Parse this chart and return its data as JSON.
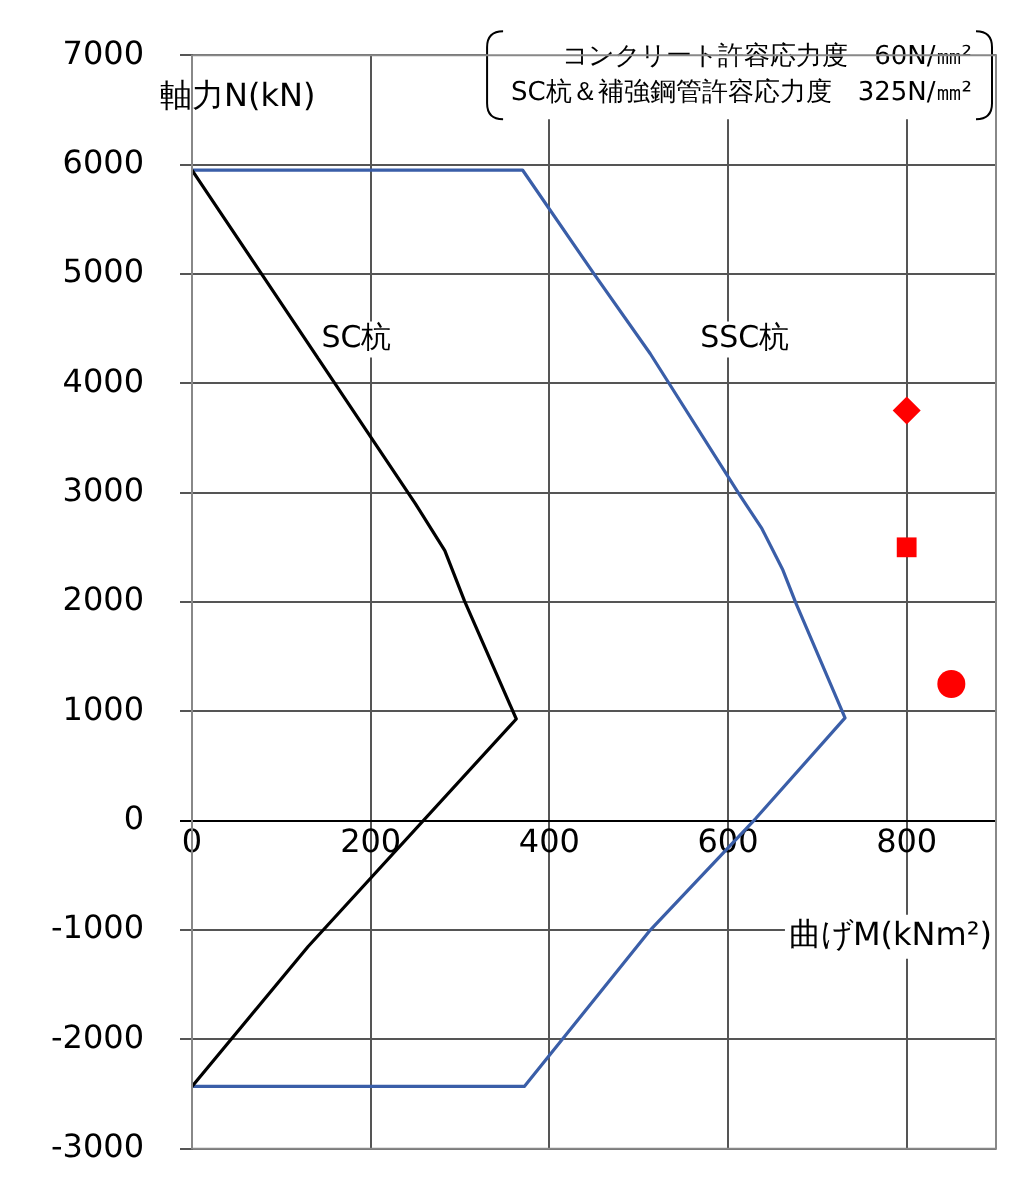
{
  "chart_data": {
    "type": "line",
    "xlabel": "曲げM(kNm²)",
    "ylabel": "軸力N(kN)",
    "annotations": [
      "コンクリート許容応力度　60N/㎜²",
      "SC杭＆補強鋼管許容応力度　325N/㎜²"
    ],
    "xlim": [
      0,
      900
    ],
    "xticks": [
      0,
      200,
      400,
      600,
      800
    ],
    "ylim": [
      -3000,
      7000
    ],
    "yticks": [
      -3000,
      -2000,
      -1000,
      0,
      1000,
      2000,
      3000,
      4000,
      5000,
      6000,
      7000
    ],
    "grid": true,
    "legend": false,
    "line_style": "solid",
    "marker": "none",
    "series": [
      {
        "name": "SC杭",
        "color": "#000000",
        "x": [
          0,
          250,
          283,
          305,
          363,
          130,
          0
        ],
        "values": [
          5950,
          2900,
          2470,
          2010,
          930,
          -1150,
          -2430
        ]
      },
      {
        "name": "SSC杭",
        "color": "#3a5ea8",
        "x": [
          0,
          370,
          450,
          513,
          613,
          638,
          661,
          676,
          731,
          631,
          513,
          372,
          0
        ],
        "values": [
          5950,
          5950,
          5000,
          4270,
          2980,
          2670,
          2300,
          1990,
          940,
          20,
          -1000,
          -2430,
          -2430
        ]
      },
      {
        "type": "scatter",
        "marker": "diamond",
        "color": "#ff0000",
        "x": [
          800
        ],
        "values": [
          3750
        ]
      },
      {
        "type": "scatter",
        "marker": "square",
        "color": "#ff0000",
        "x": [
          800
        ],
        "values": [
          2500
        ]
      },
      {
        "type": "scatter",
        "marker": "circle",
        "color": "#ff0000",
        "x": [
          850
        ],
        "values": [
          1250
        ]
      }
    ]
  }
}
